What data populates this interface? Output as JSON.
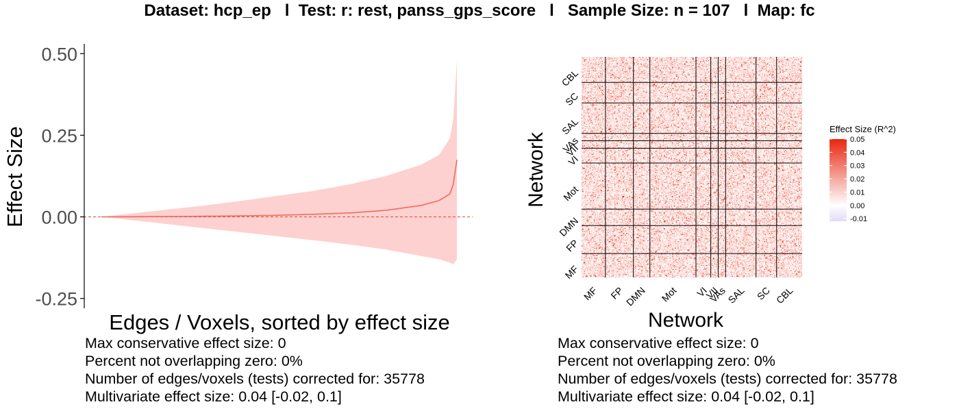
{
  "title": "Dataset: hcp_ep   l  Test: r: rest, panss_gps_score   l   Sample Size: n = 107   l  Map: fc",
  "chart_data": [
    {
      "type": "area",
      "xlabel": "Edges / Voxels, sorted by effect size",
      "ylabel": "Effect Size",
      "ylim": [
        -0.28,
        0.53
      ],
      "yticks": [
        "0.50",
        "0.25",
        "0.00",
        "-0.25"
      ],
      "ytick_values": [
        0.5,
        0.25,
        0.0,
        -0.25
      ],
      "reference_line": 0,
      "x_fraction": [
        0,
        0.1,
        0.2,
        0.3,
        0.4,
        0.5,
        0.6,
        0.7,
        0.8,
        0.9,
        0.95,
        0.98,
        0.99,
        1.0
      ],
      "estimate": [
        0.0,
        0.0005,
        0.001,
        0.002,
        0.003,
        0.005,
        0.008,
        0.012,
        0.02,
        0.035,
        0.05,
        0.07,
        0.1,
        0.175
      ],
      "upper": [
        0.0,
        0.012,
        0.024,
        0.036,
        0.05,
        0.065,
        0.08,
        0.1,
        0.125,
        0.16,
        0.19,
        0.24,
        0.3,
        0.48
      ],
      "lower": [
        0.0,
        -0.012,
        -0.024,
        -0.036,
        -0.048,
        -0.06,
        -0.072,
        -0.085,
        -0.1,
        -0.12,
        -0.13,
        -0.14,
        -0.145,
        -0.13
      ],
      "colors": {
        "band": "#fdd1cf",
        "line": "#f06b5e",
        "reference": "#e0413a"
      }
    },
    {
      "type": "heatmap",
      "xlabel": "Network",
      "ylabel": "Network",
      "networks": [
        "MF",
        "FP",
        "DMN",
        "Mot",
        "VI",
        "VII",
        "VAs",
        "SAL",
        "SC",
        "CBL"
      ],
      "network_sizes": [
        29,
        34,
        20,
        56,
        18,
        9,
        9,
        37,
        25,
        31
      ],
      "legend": {
        "title": "Effect Size (R^2)",
        "ticks": [
          "0.05",
          "0.04",
          "0.03",
          "0.02",
          "0.01",
          "0.00",
          "-0.01"
        ],
        "tick_values": [
          0.05,
          0.04,
          0.03,
          0.02,
          0.01,
          0.0,
          -0.01
        ],
        "range": [
          -0.012,
          0.05
        ],
        "colors": {
          "high": "#e8260f",
          "mid": "#ffffff",
          "low": "#e2daf7"
        }
      }
    }
  ],
  "stats_left": [
    "Max conservative effect size: 0",
    "Percent not overlapping zero: 0%",
    "Number of edges/voxels (tests) corrected for: 35778",
    "Multivariate effect size: 0.04 [-0.02, 0.1]"
  ],
  "stats_right": [
    "Max conservative effect size: 0",
    "Percent not overlapping zero: 0%",
    "Number of edges/voxels (tests) corrected for: 35778",
    "Multivariate effect size: 0.04 [-0.02, 0.1]"
  ]
}
